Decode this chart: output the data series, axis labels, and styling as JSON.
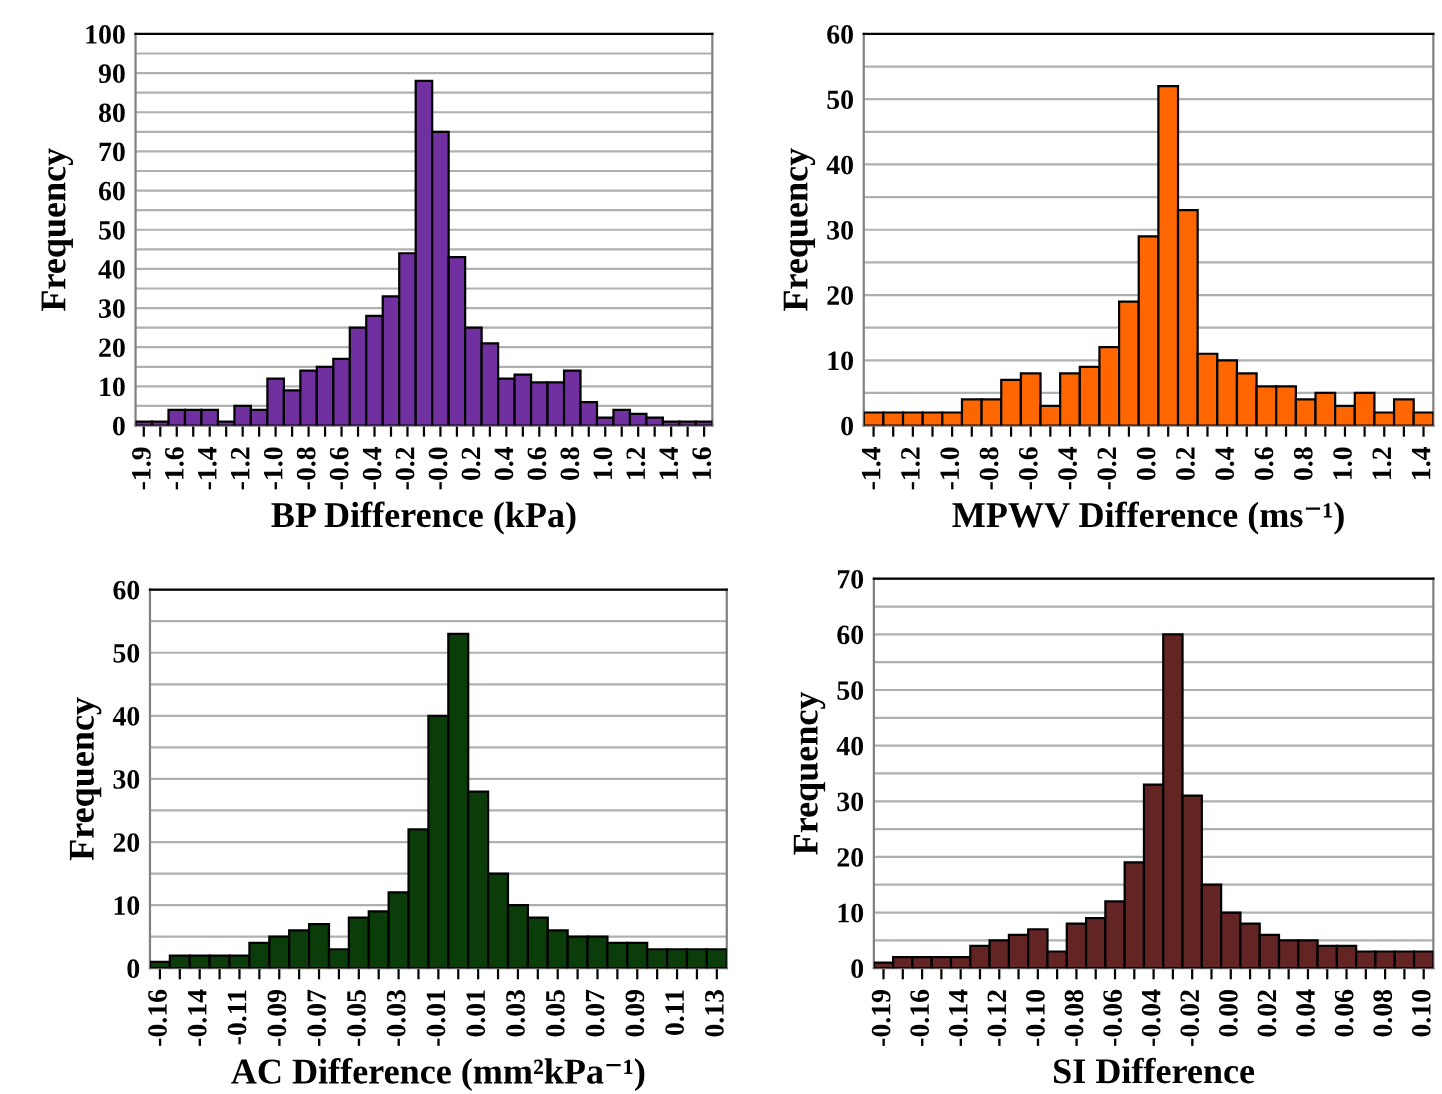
{
  "chart_data": [
    {
      "type": "bar",
      "xlabel": "BP Difference (kPa)",
      "ylabel": "Frequency",
      "categories": [
        "-1.9",
        null,
        "-1.6",
        null,
        "-1.4",
        null,
        "-1.2",
        null,
        "-1.0",
        null,
        "-0.8",
        null,
        "-0.6",
        null,
        "-0.4",
        null,
        "-0.2",
        null,
        "-0.0",
        null,
        "0.2",
        null,
        "0.4",
        null,
        "0.6",
        null,
        "0.8",
        null,
        "1.0",
        null,
        "1.2",
        null,
        "1.4",
        null,
        "1.6"
      ],
      "values": [
        1,
        1,
        4,
        4,
        4,
        1,
        5,
        4,
        12,
        9,
        14,
        15,
        17,
        25,
        28,
        33,
        44,
        88,
        75,
        43,
        25,
        21,
        12,
        13,
        11,
        11,
        14,
        6,
        2,
        4,
        3,
        2,
        1,
        1,
        1
      ],
      "color": "#7030a0",
      "ylim": [
        0,
        100
      ],
      "yticks": [
        0,
        {
          "value": 5,
          "label": null
        },
        10,
        {
          "value": 15,
          "label": null
        },
        20,
        {
          "value": 25,
          "label": null
        },
        30,
        {
          "value": 35,
          "label": null
        },
        40,
        {
          "value": 45,
          "label": null
        },
        50,
        {
          "value": 55,
          "label": null
        },
        60,
        {
          "value": 65,
          "label": null
        },
        70,
        {
          "value": 75,
          "label": null
        },
        80,
        {
          "value": 85,
          "label": null
        },
        90,
        {
          "value": 95,
          "label": null
        },
        100
      ],
      "grid": "y"
    },
    {
      "type": "bar",
      "xlabel": "MPWV Difference (ms⁻¹)",
      "ylabel": "Frequency",
      "categories": [
        "-1.4",
        null,
        "-1.2",
        null,
        "-1.0",
        null,
        "-0.8",
        null,
        "-0.6",
        null,
        "-0.4",
        null,
        "-0.2",
        null,
        "0.0",
        null,
        "0.2",
        null,
        "0.4",
        null,
        "0.6",
        null,
        "0.8",
        null,
        "1.0",
        null,
        "1.2",
        null,
        "1.4"
      ],
      "values": [
        2,
        2,
        2,
        2,
        2,
        4,
        4,
        7,
        8,
        3,
        8,
        9,
        12,
        19,
        29,
        52,
        33,
        11,
        10,
        8,
        6,
        6,
        4,
        5,
        3,
        5,
        2,
        4,
        2
      ],
      "color": "#ff6600",
      "ylim": [
        0,
        60
      ],
      "yticks": [
        0,
        {
          "value": 5,
          "label": null
        },
        10,
        {
          "value": 15,
          "label": null
        },
        20,
        {
          "value": 25,
          "label": null
        },
        30,
        {
          "value": 35,
          "label": null
        },
        40,
        {
          "value": 45,
          "label": null
        },
        50,
        {
          "value": 55,
          "label": null
        },
        60
      ],
      "grid": "y"
    },
    {
      "type": "bar",
      "xlabel": "AC Difference (mm²kPa⁻¹)",
      "ylabel": "Frequency",
      "categories": [
        "-0.16",
        null,
        "-0.14",
        null,
        "-0.11",
        null,
        "-0.09",
        null,
        "-0.07",
        null,
        "-0.05",
        null,
        "-0.03",
        null,
        "-0.01",
        null,
        "0.01",
        null,
        "0.03",
        null,
        "0.05",
        null,
        "0.07",
        null,
        "0.09",
        null,
        "0.11",
        null,
        "0.13"
      ],
      "values": [
        1,
        2,
        2,
        2,
        2,
        4,
        5,
        6,
        7,
        3,
        8,
        9,
        12,
        22,
        40,
        53,
        28,
        15,
        10,
        8,
        6,
        5,
        5,
        4,
        4,
        3,
        3,
        3,
        3
      ],
      "color": "#0b3d0b",
      "ylim": [
        0,
        60
      ],
      "yticks": [
        0,
        {
          "value": 5,
          "label": null
        },
        10,
        {
          "value": 15,
          "label": null
        },
        20,
        {
          "value": 25,
          "label": null
        },
        30,
        {
          "value": 35,
          "label": null
        },
        40,
        {
          "value": 45,
          "label": null
        },
        50,
        {
          "value": 55,
          "label": null
        },
        60
      ],
      "grid": "y"
    },
    {
      "type": "bar",
      "xlabel": "SI Difference",
      "ylabel": "Frequency",
      "categories": [
        "-0.19",
        null,
        "-0.16",
        null,
        "-0.14",
        null,
        "-0.12",
        null,
        "-0.10",
        null,
        "-0.08",
        null,
        "-0.06",
        null,
        "-0.04",
        null,
        "-0.02",
        null,
        "0.00",
        null,
        "0.02",
        null,
        "0.04",
        null,
        "0.06",
        null,
        "0.08",
        null,
        "0.10"
      ],
      "values": [
        1,
        2,
        2,
        2,
        2,
        4,
        5,
        6,
        7,
        3,
        8,
        9,
        12,
        19,
        33,
        60,
        31,
        15,
        10,
        8,
        6,
        5,
        5,
        4,
        4,
        3,
        3,
        3,
        3
      ],
      "color": "#632523",
      "ylim": [
        0,
        70
      ],
      "yticks": [
        0,
        {
          "value": 5,
          "label": null
        },
        10,
        {
          "value": 15,
          "label": null
        },
        20,
        {
          "value": 25,
          "label": null
        },
        30,
        {
          "value": 35,
          "label": null
        },
        40,
        {
          "value": 45,
          "label": null
        },
        50,
        {
          "value": 55,
          "label": null
        },
        60,
        {
          "value": 65,
          "label": null
        },
        70
      ],
      "grid": "y"
    }
  ]
}
